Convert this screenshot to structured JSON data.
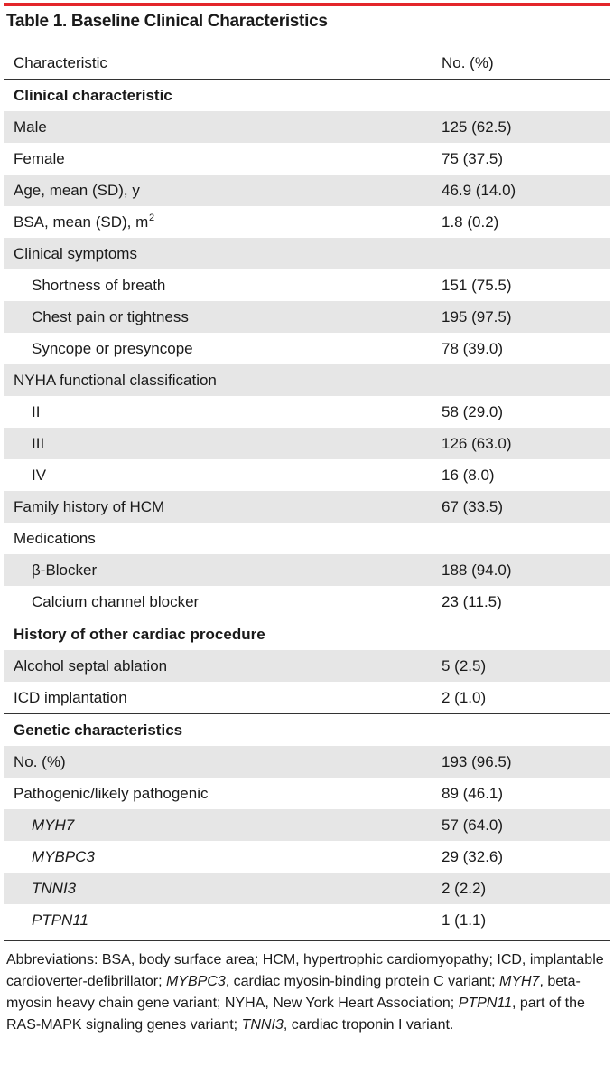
{
  "title": "Table 1. Baseline Clinical Characteristics",
  "columns": {
    "characteristic": "Characteristic",
    "value": "No. (%)"
  },
  "rows": [
    {
      "label": "Clinical characteristic",
      "value": "",
      "style": "section"
    },
    {
      "label": "Male",
      "value": "125 (62.5)"
    },
    {
      "label": "Female",
      "value": "75 (37.5)"
    },
    {
      "label": "Age, mean (SD), y",
      "value": "46.9 (14.0)"
    },
    {
      "label": "BSA, mean (SD), m",
      "sup": "2",
      "value": "1.8 (0.2)"
    },
    {
      "label": "Clinical symptoms",
      "value": ""
    },
    {
      "label": "Shortness of breath",
      "value": "151 (75.5)",
      "indent": true
    },
    {
      "label": "Chest pain or tightness",
      "value": "195 (97.5)",
      "indent": true
    },
    {
      "label": "Syncope or presyncope",
      "value": "78 (39.0)",
      "indent": true
    },
    {
      "label": "NYHA functional classification",
      "value": ""
    },
    {
      "label": "II",
      "value": "58 (29.0)",
      "indent": true
    },
    {
      "label": "III",
      "value": "126 (63.0)",
      "indent": true
    },
    {
      "label": "IV",
      "value": "16 (8.0)",
      "indent": true
    },
    {
      "label": "Family history of HCM",
      "value": "67 (33.5)"
    },
    {
      "label": "Medications",
      "value": ""
    },
    {
      "label": "β-Blocker",
      "value": "188 (94.0)",
      "indent": true
    },
    {
      "label": "Calcium channel blocker",
      "value": "23 (11.5)",
      "indent": true
    },
    {
      "label": "History of other cardiac procedure",
      "value": "",
      "style": "section"
    },
    {
      "label": "Alcohol septal ablation",
      "value": "5 (2.5)"
    },
    {
      "label": "ICD implantation",
      "value": "2 (1.0)"
    },
    {
      "label": "Genetic characteristics",
      "value": "",
      "style": "section"
    },
    {
      "label": "No. (%)",
      "value": "193 (96.5)"
    },
    {
      "label": "Pathogenic/likely pathogenic",
      "value": "89 (46.1)"
    },
    {
      "label": "MYH7",
      "value": "57 (64.0)",
      "indent": true,
      "italic": true
    },
    {
      "label": "MYBPC3",
      "value": "29 (32.6)",
      "indent": true,
      "italic": true
    },
    {
      "label": "TNNI3",
      "value": "2 (2.2)",
      "indent": true,
      "italic": true
    },
    {
      "label": "PTPN11",
      "value": "1 (1.1)",
      "indent": true,
      "italic": true
    }
  ],
  "footnote": [
    {
      "text": "Abbreviations: BSA, body surface area; HCM, hypertrophic cardiomyopathy; ICD, implantable cardioverter-defibrillator; "
    },
    {
      "text": "MYBPC3",
      "italic": true
    },
    {
      "text": ", cardiac myosin-binding protein C variant; "
    },
    {
      "text": "MYH7",
      "italic": true
    },
    {
      "text": ", beta-myosin heavy chain gene variant; NYHA, New York Heart Association; "
    },
    {
      "text": "PTPN11",
      "italic": true
    },
    {
      "text": ", part of the RAS-MAPK signaling genes variant; "
    },
    {
      "text": "TNNI3",
      "italic": true
    },
    {
      "text": ", cardiac troponin I variant."
    }
  ],
  "colors": {
    "accent_rule": "#e3262a",
    "shade": "#e6e6e6",
    "rule": "#333333"
  }
}
